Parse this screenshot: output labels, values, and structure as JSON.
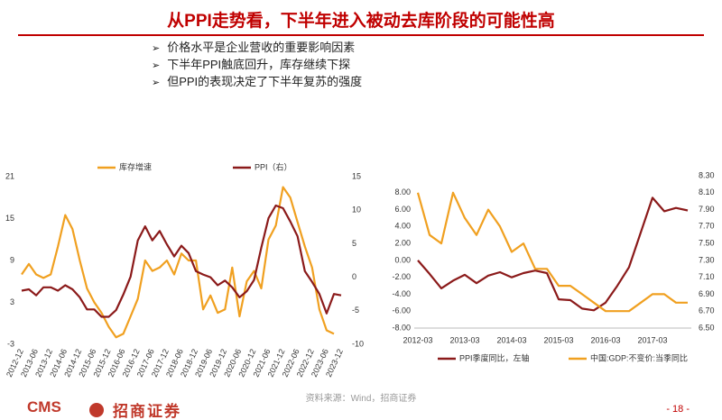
{
  "title": "从PPI走势看，下半年进入被动去库阶段的可能性高",
  "bullets": [
    "价格水平是企业营收的重要影响因素",
    "下半年PPI触底回升，库存继续下探",
    "但PPI的表现决定了下半年复苏的强度"
  ],
  "chart_data": [
    {
      "type": "line",
      "categories": [
        "2012-12",
        null,
        "2013-06",
        null,
        "2013-12",
        null,
        "2014-06",
        null,
        "2014-12",
        null,
        "2015-06",
        null,
        "2015-12",
        null,
        "2016-06",
        null,
        "2016-12",
        null,
        "2017-06",
        null,
        "2017-12",
        null,
        "2018-06",
        null,
        "2018-12",
        null,
        "2019-06",
        null,
        "2019-12",
        null,
        "2020-06",
        null,
        "2020-12",
        null,
        "2021-06",
        null,
        "2021-12",
        null,
        "2022-06",
        null,
        "2022-12",
        null,
        "2023-06",
        null,
        "2023-12"
      ],
      "series": [
        {
          "name": "库存增速",
          "color": "#f0a020",
          "values": [
            7,
            8.5,
            7,
            6.5,
            7,
            11,
            15.5,
            13.5,
            9,
            5,
            3,
            1.5,
            -0.5,
            -2,
            -1.5,
            1,
            3.5,
            9,
            7.5,
            8,
            9,
            7,
            10,
            9,
            9,
            2,
            4,
            1.5,
            2,
            8,
            1,
            6,
            7.5,
            5,
            12,
            14,
            19.5,
            18,
            14.5,
            11,
            8,
            2,
            -1,
            -1.5,
            null
          ]
        },
        {
          "name": "PPI（右）",
          "color": "#8b1a1a",
          "axis": "y2",
          "values": [
            -2,
            -1.8,
            -2.7,
            -1.5,
            -1.5,
            -2,
            -1.2,
            -1.8,
            -3,
            -4.8,
            -4.8,
            -5.9,
            -5.9,
            -4.9,
            -2.6,
            0.1,
            5.5,
            7.6,
            5.5,
            6.9,
            4.9,
            3.1,
            4.7,
            3.6,
            0.9,
            0.4,
            0,
            -1.2,
            -0.5,
            -1.5,
            -3,
            -2.1,
            -0.4,
            4.4,
            8.8,
            10.7,
            10.3,
            8.3,
            6.1,
            0.9,
            -0.7,
            -2.5,
            -5.4,
            -2.5,
            -2.7
          ]
        }
      ],
      "ylim": [
        -3,
        21
      ],
      "yticks": [
        -3,
        3,
        9,
        15,
        21
      ],
      "y2lim": [
        -10,
        15
      ],
      "y2ticks": [
        -10,
        -5,
        0,
        5,
        10,
        15
      ],
      "legend": "top"
    },
    {
      "type": "line",
      "categories": [
        "2012-03",
        null,
        null,
        null,
        "2013-03",
        null,
        null,
        null,
        "2014-03",
        null,
        null,
        null,
        "2015-03",
        null,
        null,
        null,
        "2016-03",
        null,
        null,
        null,
        "2017-03",
        null,
        null,
        null
      ],
      "series": [
        {
          "name": "PPI季度同比，左轴",
          "color": "#8b1a1a",
          "values": [
            0,
            -1.6,
            -3.3,
            -2.4,
            -1.7,
            -2.7,
            -1.8,
            -1.4,
            -2,
            -1.5,
            -1.2,
            -1.5,
            -4.6,
            -4.7,
            -5.7,
            -5.9,
            -5,
            -3,
            -0.8,
            3.3,
            7.4,
            5.8,
            6.2,
            5.9
          ]
        },
        {
          "name": "中国:GDP:不变价:当季同比",
          "color": "#f0a020",
          "axis": "y2",
          "values": [
            8.1,
            7.6,
            7.5,
            8.1,
            7.8,
            7.6,
            7.9,
            7.7,
            7.4,
            7.5,
            7.2,
            7.2,
            7.0,
            7.0,
            6.9,
            6.8,
            6.7,
            6.7,
            6.7,
            6.8,
            6.9,
            6.9,
            6.8,
            6.8
          ]
        }
      ],
      "ylim": [
        -8,
        10
      ],
      "yticks": [
        {
          "value": -8,
          "label": "-8.00"
        },
        {
          "value": -6,
          "label": "-6.00"
        },
        {
          "value": -4,
          "label": "-4.00"
        },
        {
          "value": -2,
          "label": "-2.00"
        },
        {
          "value": 0,
          "label": "0.00"
        },
        {
          "value": 2,
          "label": "2.00"
        },
        {
          "value": 4,
          "label": "4.00"
        },
        {
          "value": 6,
          "label": "6.00"
        },
        {
          "value": 8,
          "label": "8.00"
        }
      ],
      "y2lim": [
        6.5,
        8.3
      ],
      "y2ticks": [
        {
          "value": 6.5,
          "label": "6.50"
        },
        {
          "value": 6.7,
          "label": "6.70"
        },
        {
          "value": 6.9,
          "label": "6.90"
        },
        {
          "value": 7.1,
          "label": "7.10"
        },
        {
          "value": 7.3,
          "label": "7.30"
        },
        {
          "value": 7.5,
          "label": "7.50"
        },
        {
          "value": 7.7,
          "label": "7.70"
        },
        {
          "value": 7.9,
          "label": "7.90"
        },
        {
          "value": 8.1,
          "label": "8.10"
        },
        {
          "value": 8.3,
          "label": "8.30"
        }
      ],
      "legend": "bottom"
    }
  ],
  "source": "资料来源：Wind，招商证券",
  "footer": {
    "logo": "CMS",
    "company": "招商证券",
    "page": "- 18 -"
  }
}
